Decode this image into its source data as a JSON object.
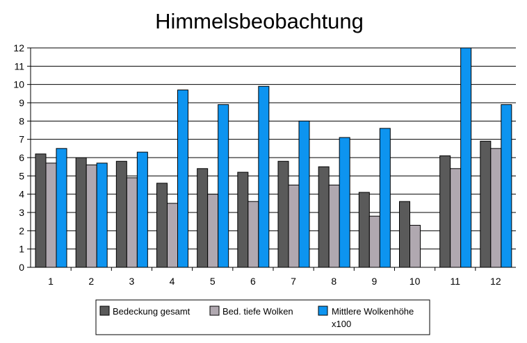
{
  "chart_data": {
    "type": "bar",
    "title": "Himmelsbeobachtung",
    "xlabel": "",
    "ylabel": "",
    "categories": [
      "1",
      "2",
      "3",
      "4",
      "5",
      "6",
      "7",
      "8",
      "9",
      "10",
      "11",
      "12"
    ],
    "ylim": [
      0,
      12
    ],
    "yticks": [
      "0",
      "1",
      "2",
      "3",
      "4",
      "5",
      "6",
      "7",
      "8",
      "9",
      "10",
      "11",
      "12"
    ],
    "grid": true,
    "legend_position": "bottom",
    "series": [
      {
        "name": "Bedeckung gesamt",
        "color": "#5a5a5a",
        "values": [
          6.2,
          6.0,
          5.8,
          4.6,
          5.4,
          5.2,
          5.8,
          5.5,
          4.1,
          3.6,
          6.1,
          6.9
        ]
      },
      {
        "name": "Bed. tiefe Wolken",
        "color": "#b0a8b0",
        "values": [
          5.7,
          5.6,
          4.9,
          3.5,
          4.0,
          3.6,
          4.5,
          4.5,
          2.8,
          2.3,
          5.4,
          6.5
        ]
      },
      {
        "name": "Mittlere Wolkenhöhe",
        "name_line2": "x100",
        "color": "#0d94f0",
        "values": [
          6.5,
          5.7,
          6.3,
          9.7,
          8.9,
          9.9,
          8.0,
          7.1,
          7.6,
          null,
          12.0,
          8.9
        ]
      }
    ]
  }
}
